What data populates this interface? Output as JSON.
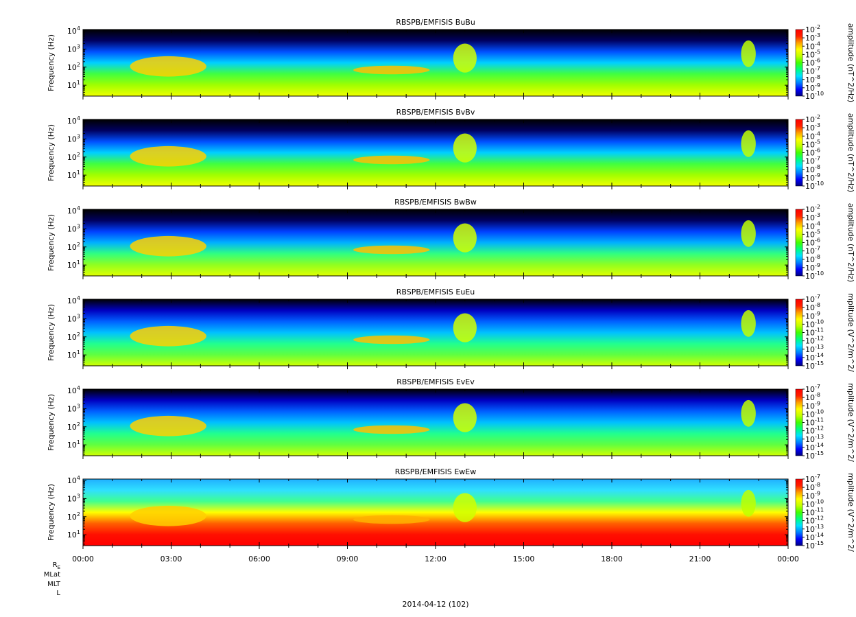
{
  "chart_data": {
    "type": "heatmap",
    "date_label": "2014-04-12 (102)",
    "x_tick_labels": [
      "00:00",
      "03:00",
      "06:00",
      "09:00",
      "12:00",
      "15:00",
      "18:00",
      "21:00",
      "00:00"
    ],
    "x_range_hours": [
      0,
      24
    ],
    "x_minor_ticks_per_hour": 1,
    "y_scale": "log",
    "y_range": [
      2.5,
      12000
    ],
    "y_tick_labels": [
      {
        "base": "10",
        "exp": "1"
      },
      {
        "base": "10",
        "exp": "2"
      },
      {
        "base": "10",
        "exp": "3"
      },
      {
        "base": "10",
        "exp": "4"
      }
    ],
    "footer_row_labels": [
      "RE",
      "MLat",
      "MLT",
      "L"
    ],
    "colorscale": [
      "#000080",
      "#0000ff",
      "#0080ff",
      "#00e0ff",
      "#00ff80",
      "#40ff00",
      "#c0ff00",
      "#ffff00",
      "#ffa000",
      "#ff2000",
      "#ff0000"
    ],
    "panels": [
      {
        "title": "RBSPB/EMFISIS  BuBu",
        "ylabel": "Frequency (Hz)",
        "cbar_label": "amplitude (nT^2/Hz)",
        "cbar_exponents": [
          "-2",
          "-3",
          "-4",
          "-5",
          "-6",
          "-7",
          "-8",
          "-9",
          "-10"
        ],
        "cbar_range_exp": [
          -10,
          -2
        ]
      },
      {
        "title": "RBSPB/EMFISIS  BvBv",
        "ylabel": "Frequency (Hz)",
        "cbar_label": "amplitude (nT^2/Hz)",
        "cbar_exponents": [
          "-2",
          "-3",
          "-4",
          "-5",
          "-6",
          "-7",
          "-8",
          "-9",
          "-10"
        ],
        "cbar_range_exp": [
          -10,
          -2
        ]
      },
      {
        "title": "RBSPB/EMFISIS  BwBw",
        "ylabel": "Frequency (Hz)",
        "cbar_label": "amplitude (nT^2/Hz)",
        "cbar_exponents": [
          "-2",
          "-3",
          "-4",
          "-5",
          "-6",
          "-7",
          "-8",
          "-9",
          "-10"
        ],
        "cbar_range_exp": [
          -10,
          -2
        ]
      },
      {
        "title": "RBSPB/EMFISIS  EuEu",
        "ylabel": "Frequency (Hz)",
        "cbar_label": "mplitude (V^2/m^2/",
        "cbar_exponents": [
          "-7",
          "-8",
          "-9",
          "-10",
          "-11",
          "-12",
          "-13",
          "-14",
          "-15"
        ],
        "cbar_range_exp": [
          -15,
          -7
        ]
      },
      {
        "title": "RBSPB/EMFISIS  EvEv",
        "ylabel": "Frequency (Hz)",
        "cbar_label": "mplitude (V^2/m^2/",
        "cbar_exponents": [
          "-7",
          "-8",
          "-9",
          "-10",
          "-11",
          "-12",
          "-13",
          "-14",
          "-15"
        ],
        "cbar_range_exp": [
          -15,
          -7
        ]
      },
      {
        "title": "RBSPB/EMFISIS  EwEw",
        "ylabel": "Frequency (Hz)",
        "cbar_label": "mplitude (V^2/m^2/",
        "cbar_exponents": [
          "-7",
          "-8",
          "-9",
          "-10",
          "-11",
          "-12",
          "-13",
          "-14",
          "-15"
        ],
        "cbar_range_exp": [
          -15,
          -7
        ]
      }
    ]
  }
}
